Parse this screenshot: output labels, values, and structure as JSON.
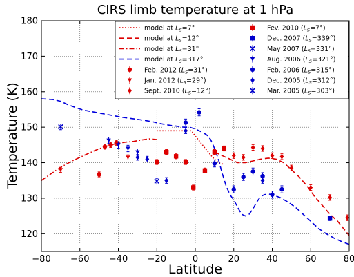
{
  "chart_data": {
    "type": "scatter",
    "title": "CIRS limb temperature at 1 hPa",
    "xlabel": "Latitude",
    "ylabel": "Temperature (K)",
    "xlim": [
      -80,
      80
    ],
    "ylim": [
      115,
      180
    ],
    "x_ticks": [
      -80,
      -60,
      -40,
      -20,
      0,
      20,
      40,
      60,
      80
    ],
    "y_ticks": [
      120,
      130,
      140,
      150,
      160,
      170,
      180
    ],
    "grid": true,
    "legend_position": "top-right",
    "colors": {
      "red": "#dd0000",
      "blue": "#0000cc"
    },
    "models": [
      {
        "name": "model at",
        "ls": "7°",
        "color": "#dd0000",
        "dash": "dotted",
        "points": [
          [
            -20,
            149
          ],
          [
            -2,
            149
          ],
          [
            0,
            147.5
          ],
          [
            3,
            145.5
          ],
          [
            6,
            143.5
          ],
          [
            9,
            141.5
          ],
          [
            12,
            140
          ],
          [
            15,
            139.5
          ]
        ]
      },
      {
        "name": "model at",
        "ls": "12°",
        "color": "#dd0000",
        "dash": "dashed",
        "points": [
          [
            10,
            143
          ],
          [
            14,
            142
          ],
          [
            18,
            141
          ],
          [
            22,
            140
          ],
          [
            26,
            140
          ],
          [
            30,
            140.5
          ],
          [
            34,
            141
          ],
          [
            38,
            141.3
          ],
          [
            42,
            141
          ],
          [
            46,
            140
          ],
          [
            50,
            138
          ],
          [
            54,
            136
          ],
          [
            58,
            133.5
          ],
          [
            62,
            130.5
          ],
          [
            66,
            128
          ],
          [
            70,
            125.5
          ],
          [
            74,
            123.5
          ],
          [
            77,
            121.5
          ],
          [
            80,
            119.5
          ]
        ]
      },
      {
        "name": "model at",
        "ls": "31°",
        "color": "#dd0000",
        "dash": "dashdot",
        "points": [
          [
            -80,
            135
          ],
          [
            -76,
            136.5
          ],
          [
            -72,
            138
          ],
          [
            -68,
            139.3
          ],
          [
            -64,
            140.5
          ],
          [
            -60,
            141.5
          ],
          [
            -56,
            142.5
          ],
          [
            -52,
            143.5
          ],
          [
            -48,
            144.3
          ],
          [
            -44,
            145
          ],
          [
            -40,
            145.5
          ],
          [
            -36,
            145.8
          ],
          [
            -32,
            146
          ],
          [
            -28,
            146.4
          ],
          [
            -24,
            146.7
          ],
          [
            -20,
            146.5
          ]
        ]
      },
      {
        "name": "model at",
        "ls": "317°",
        "color": "#0000dd",
        "dash": "dashed",
        "points": [
          [
            -80,
            158
          ],
          [
            -74,
            157.8
          ],
          [
            -70,
            157.3
          ],
          [
            -66,
            156.3
          ],
          [
            -62,
            155.5
          ],
          [
            -58,
            154.8
          ],
          [
            -54,
            154.4
          ],
          [
            -50,
            154
          ],
          [
            -46,
            153.6
          ],
          [
            -42,
            153.2
          ],
          [
            -38,
            152.8
          ],
          [
            -34,
            152.5
          ],
          [
            -30,
            152.2
          ],
          [
            -26,
            151.9
          ],
          [
            -22,
            151.5
          ],
          [
            -18,
            151
          ],
          [
            -14,
            150.6
          ],
          [
            -10,
            150.3
          ],
          [
            -6,
            150
          ],
          [
            -3,
            150
          ],
          [
            0,
            149.5
          ],
          [
            2,
            149
          ],
          [
            4,
            148.5
          ],
          [
            6,
            147.8
          ],
          [
            8,
            146.5
          ],
          [
            10,
            144
          ],
          [
            12,
            141
          ],
          [
            14,
            137
          ],
          [
            16,
            133.5
          ],
          [
            18,
            131
          ],
          [
            20,
            129.5
          ],
          [
            22,
            127.5
          ],
          [
            24,
            125.5
          ],
          [
            26,
            125
          ],
          [
            28,
            125.5
          ],
          [
            30,
            127
          ],
          [
            32,
            129
          ],
          [
            34,
            130.5
          ],
          [
            36,
            131
          ],
          [
            38,
            131.2
          ],
          [
            40,
            131
          ],
          [
            44,
            130.2
          ],
          [
            48,
            129
          ],
          [
            52,
            127.5
          ],
          [
            56,
            125.5
          ],
          [
            60,
            123.5
          ],
          [
            64,
            121.5
          ],
          [
            68,
            120
          ],
          [
            72,
            118.8
          ],
          [
            76,
            117.8
          ],
          [
            80,
            117
          ]
        ]
      }
    ],
    "observations": [
      {
        "name": "Fev. 2010",
        "ls": "7°",
        "color": "#dd0000",
        "marker": "square",
        "err": 0.7,
        "points": [
          [
            -20,
            140.2
          ],
          [
            -15,
            143
          ],
          [
            -10,
            141.8
          ],
          [
            -5,
            140.2
          ],
          [
            -1,
            133
          ],
          [
            5,
            137.8
          ],
          [
            10,
            143
          ],
          [
            15,
            144
          ]
        ]
      },
      {
        "name": "Dec. 2007",
        "ls": "339°",
        "color": "#0000cc",
        "marker": "square",
        "err": 0.6,
        "points": [
          [
            70,
            124.3
          ]
        ]
      },
      {
        "name": "Sept. 2010",
        "ls": "12°",
        "color": "#dd0000",
        "marker": "diamond",
        "err": 0.8,
        "points": [
          [
            20,
            142
          ],
          [
            25,
            141.5
          ],
          [
            30,
            144.3
          ],
          [
            35,
            144
          ],
          [
            40,
            142
          ],
          [
            45,
            141.7
          ],
          [
            50,
            138.5
          ],
          [
            60,
            133
          ],
          [
            70,
            130.2
          ],
          [
            79,
            124.5
          ]
        ]
      },
      {
        "name": "Feb.  2012",
        "ls": "31°",
        "color": "#dd0000",
        "marker": "circle",
        "err": 0.7,
        "points": [
          [
            -50,
            136.7
          ],
          [
            -47,
            144.5
          ],
          [
            -44,
            145
          ],
          [
            -41,
            145.6
          ]
        ]
      },
      {
        "name": "Jan.  2012",
        "ls": "29°",
        "color": "#dd0000",
        "marker": "triangle-down",
        "err": 0.7,
        "points": [
          [
            -70,
            138
          ],
          [
            -35,
            141.5
          ]
        ]
      },
      {
        "name": "May 2007",
        "ls": "331°",
        "color": "#0000cc",
        "marker": "x",
        "err": 0.8,
        "points": [
          [
            -70,
            150.1
          ]
        ]
      },
      {
        "name": "Aug. 2006",
        "ls": "321°",
        "color": "#0000cc",
        "marker": "triangle-down",
        "err": 0.9,
        "points": [
          [
            -45,
            146.3
          ],
          [
            -40,
            145
          ],
          [
            -35,
            144
          ],
          [
            -30,
            143
          ]
        ]
      },
      {
        "name": "Feb. 2006",
        "ls": "315°",
        "color": "#0000cc",
        "marker": "circle",
        "err": 1.0,
        "points": [
          [
            -5,
            151.3
          ],
          [
            2,
            154.2
          ],
          [
            10,
            139.8
          ],
          [
            20,
            132.5
          ],
          [
            25,
            136
          ],
          [
            30,
            137.5
          ],
          [
            35,
            136.2
          ],
          [
            40,
            131
          ],
          [
            45,
            132.5
          ]
        ]
      },
      {
        "name": "Dec. 2005",
        "ls": "312°",
        "color": "#0000cc",
        "marker": "diamond",
        "err": 0.8,
        "points": [
          [
            -30,
            141.5
          ],
          [
            -25,
            141
          ],
          [
            -15,
            135
          ],
          [
            -5,
            149
          ],
          [
            35,
            135
          ]
        ]
      },
      {
        "name": "Mar. 2005",
        "ls": "303°",
        "color": "#0000cc",
        "marker": "x",
        "err": 0.8,
        "points": [
          [
            -20,
            134.8
          ]
        ]
      }
    ],
    "legend_left": [
      {
        "kind": "line",
        "ref": "models.0"
      },
      {
        "kind": "line",
        "ref": "models.1"
      },
      {
        "kind": "line",
        "ref": "models.2"
      },
      {
        "kind": "line",
        "ref": "models.3"
      },
      {
        "kind": "marker",
        "ref": "observations.3"
      },
      {
        "kind": "marker",
        "ref": "observations.4"
      },
      {
        "kind": "marker",
        "ref": "observations.2"
      }
    ],
    "legend_right": [
      {
        "kind": "marker",
        "ref": "observations.0"
      },
      {
        "kind": "marker",
        "ref": "observations.1"
      },
      {
        "kind": "marker",
        "ref": "observations.5"
      },
      {
        "kind": "marker",
        "ref": "observations.6"
      },
      {
        "kind": "marker",
        "ref": "observations.7"
      },
      {
        "kind": "marker",
        "ref": "observations.8"
      },
      {
        "kind": "marker",
        "ref": "observations.9"
      }
    ]
  }
}
